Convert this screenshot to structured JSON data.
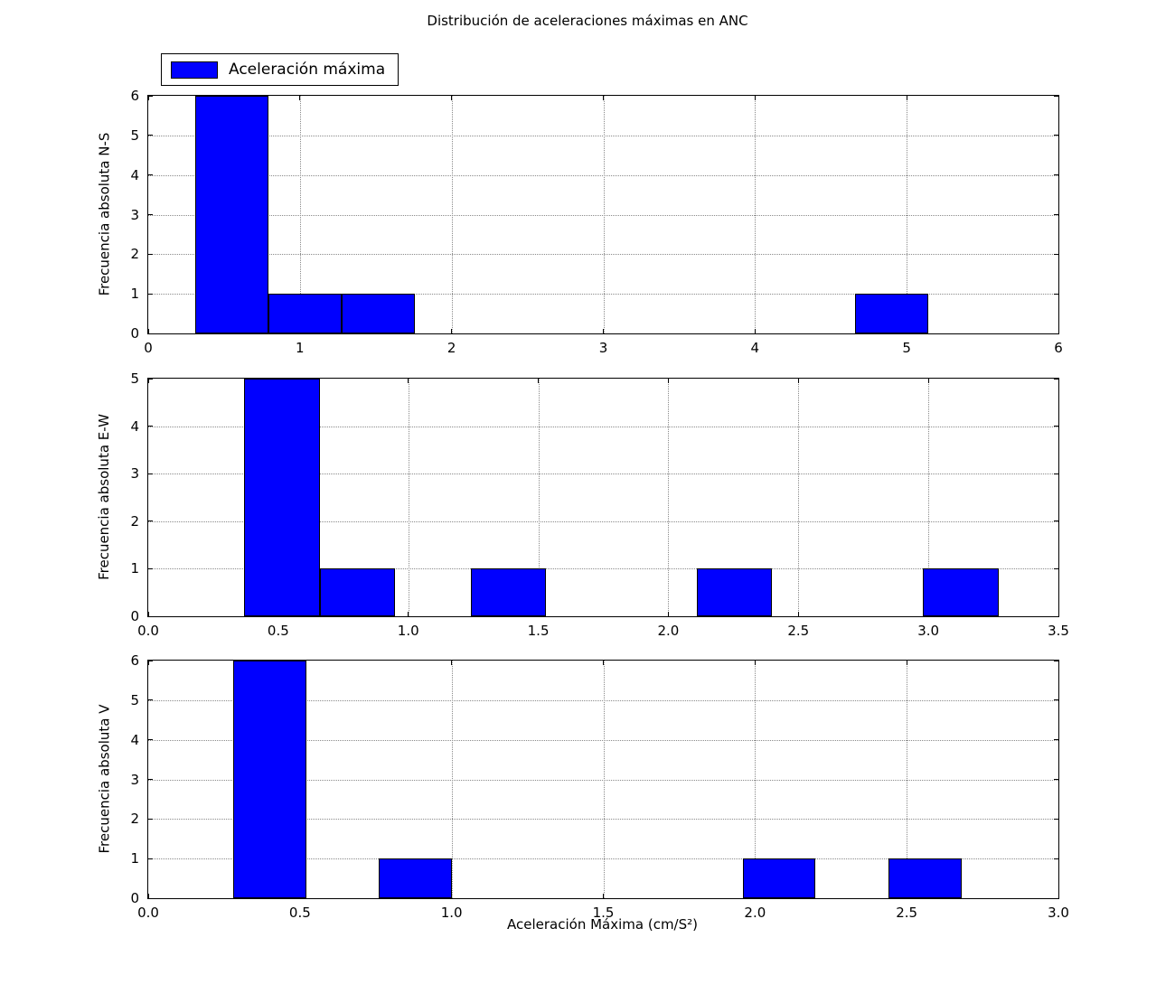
{
  "figure": {
    "title": "Distribución de aceleraciones máximas en ANC",
    "xlabel": "Aceleración Máxima (cm/S²)",
    "legend_label": "Aceleración máxima",
    "bar_color": "#0000ff",
    "bar_edge_color": "#000000",
    "background_color": "#ffffff",
    "grid": "dotted"
  },
  "chart_data": [
    {
      "id": "ns",
      "type": "bar",
      "title": "",
      "ylabel": "Frecuencia absoluta N-S",
      "xlim": [
        0,
        6
      ],
      "ylim": [
        0,
        6
      ],
      "legend": "Aceleración máxima",
      "legend_position": "upper-left-outside",
      "xticks": [
        {
          "value": 0,
          "label": "0"
        },
        {
          "value": 1,
          "label": "1"
        },
        {
          "value": 2,
          "label": "2"
        },
        {
          "value": 3,
          "label": "3"
        },
        {
          "value": 4,
          "label": "4"
        },
        {
          "value": 5,
          "label": "5"
        },
        {
          "value": 6,
          "label": "6"
        }
      ],
      "yticks": [
        {
          "value": 0,
          "label": "0"
        },
        {
          "value": 1,
          "label": "1"
        },
        {
          "value": 2,
          "label": "2"
        },
        {
          "value": 3,
          "label": "3"
        },
        {
          "value": 4,
          "label": "4"
        },
        {
          "value": 5,
          "label": "5"
        },
        {
          "value": 6,
          "label": "6"
        }
      ],
      "bin_edges": [
        0.31,
        0.793,
        1.276,
        1.759,
        2.242,
        2.725,
        3.208,
        3.691,
        4.174,
        4.657,
        5.14
      ],
      "counts": [
        6,
        1,
        1,
        0,
        0,
        0,
        0,
        0,
        0,
        1
      ]
    },
    {
      "id": "ew",
      "type": "bar",
      "title": "",
      "ylabel": "Frecuencia absoluta E-W",
      "xlim": [
        0.0,
        3.5
      ],
      "ylim": [
        0,
        5
      ],
      "xticks": [
        {
          "value": 0.0,
          "label": "0.0"
        },
        {
          "value": 0.5,
          "label": "0.5"
        },
        {
          "value": 1.0,
          "label": "1.0"
        },
        {
          "value": 1.5,
          "label": "1.5"
        },
        {
          "value": 2.0,
          "label": "2.0"
        },
        {
          "value": 2.5,
          "label": "2.5"
        },
        {
          "value": 3.0,
          "label": "3.0"
        },
        {
          "value": 3.5,
          "label": "3.5"
        }
      ],
      "yticks": [
        {
          "value": 0,
          "label": "0"
        },
        {
          "value": 1,
          "label": "1"
        },
        {
          "value": 2,
          "label": "2"
        },
        {
          "value": 3,
          "label": "3"
        },
        {
          "value": 4,
          "label": "4"
        },
        {
          "value": 5,
          "label": "5"
        }
      ],
      "bin_edges": [
        0.37,
        0.66,
        0.95,
        1.24,
        1.53,
        1.82,
        2.11,
        2.4,
        2.69,
        2.98,
        3.27
      ],
      "counts": [
        5,
        1,
        0,
        1,
        0,
        0,
        1,
        0,
        0,
        1
      ]
    },
    {
      "id": "v",
      "type": "bar",
      "title": "",
      "ylabel": "Frecuencia absoluta V",
      "xlim": [
        0.0,
        3.0
      ],
      "ylim": [
        0,
        6
      ],
      "xticks": [
        {
          "value": 0.0,
          "label": "0.0"
        },
        {
          "value": 0.5,
          "label": "0.5"
        },
        {
          "value": 1.0,
          "label": "1.0"
        },
        {
          "value": 1.5,
          "label": "1.5"
        },
        {
          "value": 2.0,
          "label": "2.0"
        },
        {
          "value": 2.5,
          "label": "2.5"
        },
        {
          "value": 3.0,
          "label": "3.0"
        }
      ],
      "yticks": [
        {
          "value": 0,
          "label": "0"
        },
        {
          "value": 1,
          "label": "1"
        },
        {
          "value": 2,
          "label": "2"
        },
        {
          "value": 3,
          "label": "3"
        },
        {
          "value": 4,
          "label": "4"
        },
        {
          "value": 5,
          "label": "5"
        },
        {
          "value": 6,
          "label": "6"
        }
      ],
      "bin_edges": [
        0.28,
        0.52,
        0.76,
        1.0,
        1.24,
        1.48,
        1.72,
        1.96,
        2.2,
        2.44,
        2.68
      ],
      "counts": [
        6,
        0,
        1,
        0,
        0,
        0,
        0,
        1,
        0,
        1
      ]
    }
  ]
}
